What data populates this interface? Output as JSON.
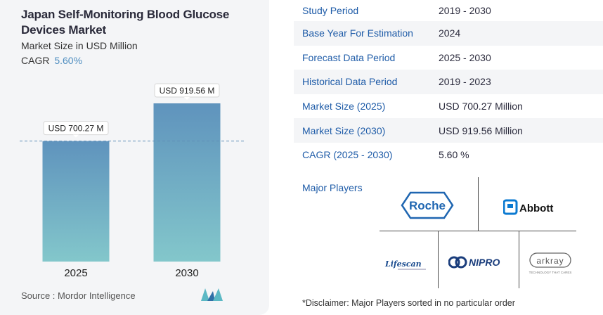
{
  "chart_data": {
    "type": "bar",
    "title": "Japan Self-Monitoring Blood Glucose Devices Market",
    "subtitle": "Market Size in USD Million",
    "cagr_label": "CAGR",
    "cagr_value": "5.60%",
    "categories": [
      "2025",
      "2030"
    ],
    "values": [
      700.27,
      919.56
    ],
    "data_labels": [
      "USD 700.27 M",
      "USD 919.56 M"
    ],
    "ylim": [
      0,
      1000
    ],
    "colors": {
      "bar_top": "#5f93bd",
      "bar_bottom": "#83c7cb",
      "reference_line": "#5f8fb8"
    }
  },
  "source": "Source :  Mordor Intelligence",
  "table": [
    {
      "key": "Study Period",
      "value": "2019 - 2030"
    },
    {
      "key": "Base Year For Estimation",
      "value": "2024"
    },
    {
      "key": "Forecast Data Period",
      "value": "2025 - 2030"
    },
    {
      "key": "Historical Data Period",
      "value": "2019 - 2023"
    },
    {
      "key": "Market Size (2025)",
      "value": "USD 700.27 Million"
    },
    {
      "key": "Market Size (2030)",
      "value": "USD 919.56 Million"
    },
    {
      "key": "CAGR (2025 - 2030)",
      "value": "5.60 %"
    }
  ],
  "players": {
    "label": "Major Players",
    "logos": {
      "roche": "Roche",
      "abbott": "Abbott",
      "lifescan": "Lifescan",
      "nipro": "NIPRO",
      "arkray": "arkray",
      "arkray_tagline": "TECHNOLOGY THAT CARES"
    }
  },
  "disclaimer": "*Disclaimer: Major Players sorted in no particular order"
}
